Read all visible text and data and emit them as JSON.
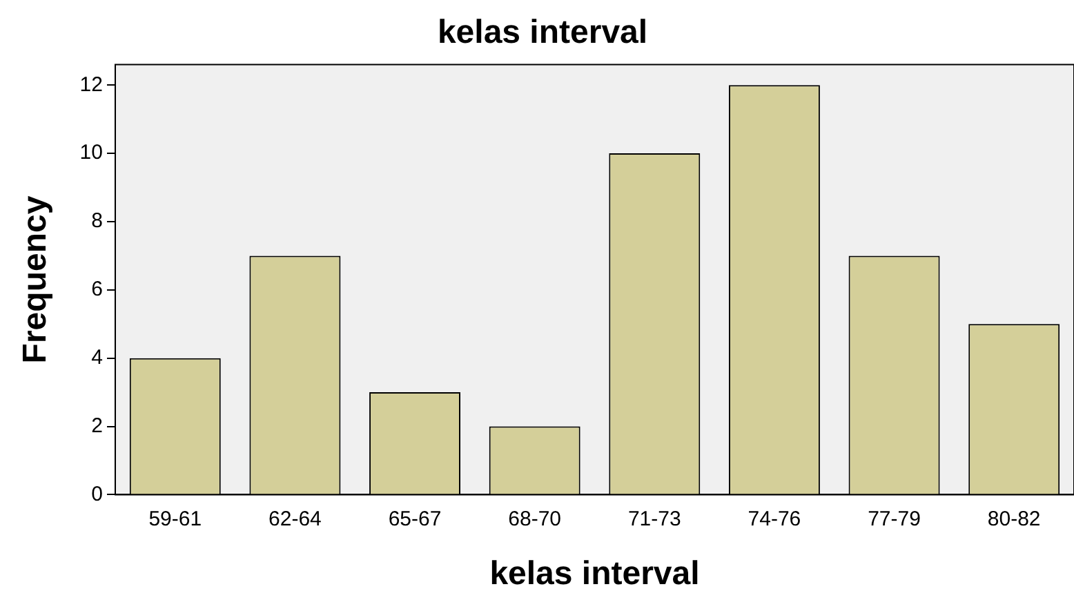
{
  "chart_data": {
    "type": "bar",
    "title": "kelas interval",
    "xlabel": "kelas interval",
    "ylabel": "Frequency",
    "categories": [
      "59-61",
      "62-64",
      "65-67",
      "68-70",
      "71-73",
      "74-76",
      "77-79",
      "80-82"
    ],
    "values": [
      4,
      7,
      3,
      2,
      10,
      12,
      7,
      5
    ],
    "color": "#d4cf99",
    "ylim": [
      0,
      12.6
    ],
    "yticks": [
      0,
      2,
      4,
      6,
      8,
      10,
      12
    ],
    "grid": false,
    "legend": false
  }
}
